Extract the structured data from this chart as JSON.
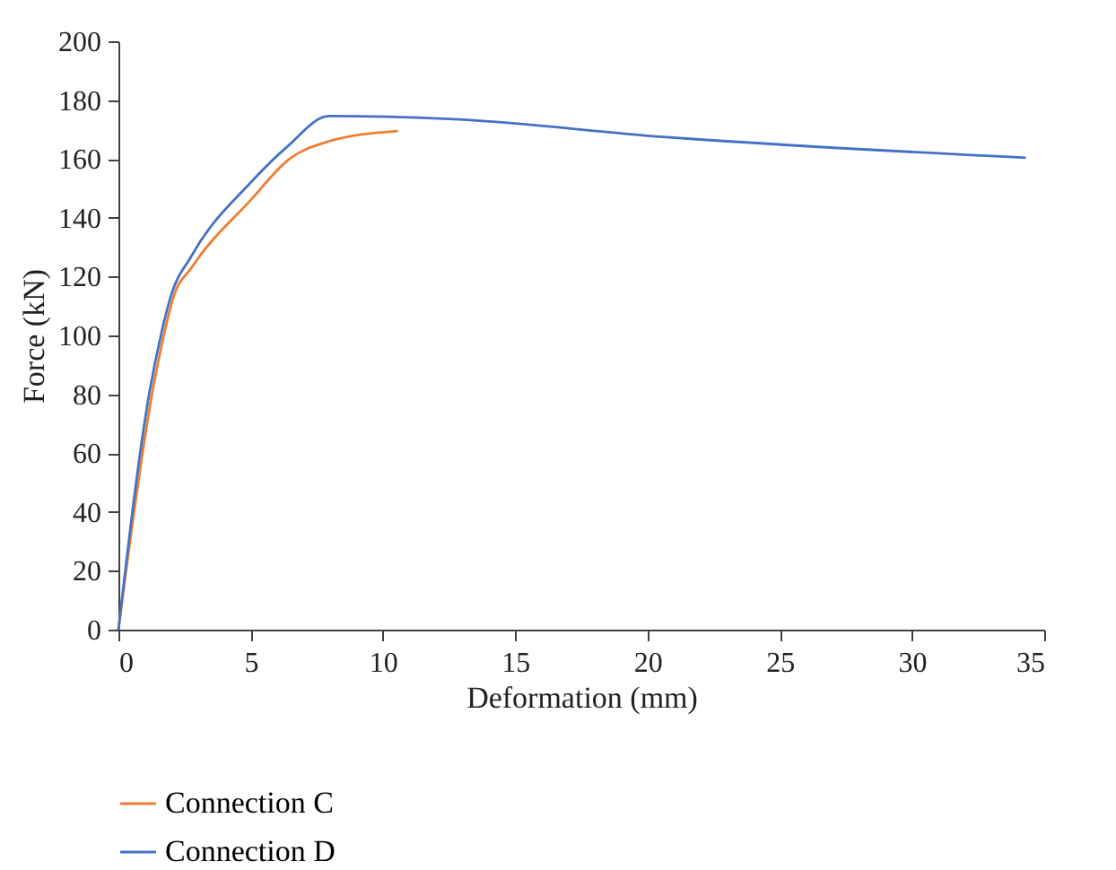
{
  "chart_data": {
    "type": "line",
    "xlabel": "Deformation (mm)",
    "ylabel": "Force (kN)",
    "xlim": [
      0,
      35
    ],
    "xticks": [
      0,
      5,
      10,
      15,
      20,
      25,
      30,
      35
    ],
    "ylim": [
      0,
      200
    ],
    "yticks": [
      0,
      20,
      40,
      60,
      80,
      100,
      120,
      140,
      160,
      180,
      200
    ],
    "grid": false,
    "legend": "bottom left",
    "line_style": "solid",
    "series": [
      {
        "name": "Connection C",
        "color": "#ed7d31",
        "x": [
          0,
          1.29,
          1.74,
          2.08,
          2.76,
          5.0,
          6.47,
          7.96,
          10.56
        ],
        "values": [
          0,
          81,
          101,
          113,
          123,
          146,
          160,
          166,
          169.5
        ]
      },
      {
        "name": "Connection D",
        "color": "#4472c4",
        "x": [
          0,
          1.18,
          1.63,
          1.97,
          2.76,
          5.0,
          6.36,
          7.96,
          12.5,
          20.6,
          34.3
        ],
        "values": [
          0,
          81,
          101,
          113,
          127,
          152,
          164,
          174.6,
          173.6,
          167.5,
          160.4
        ]
      }
    ]
  }
}
